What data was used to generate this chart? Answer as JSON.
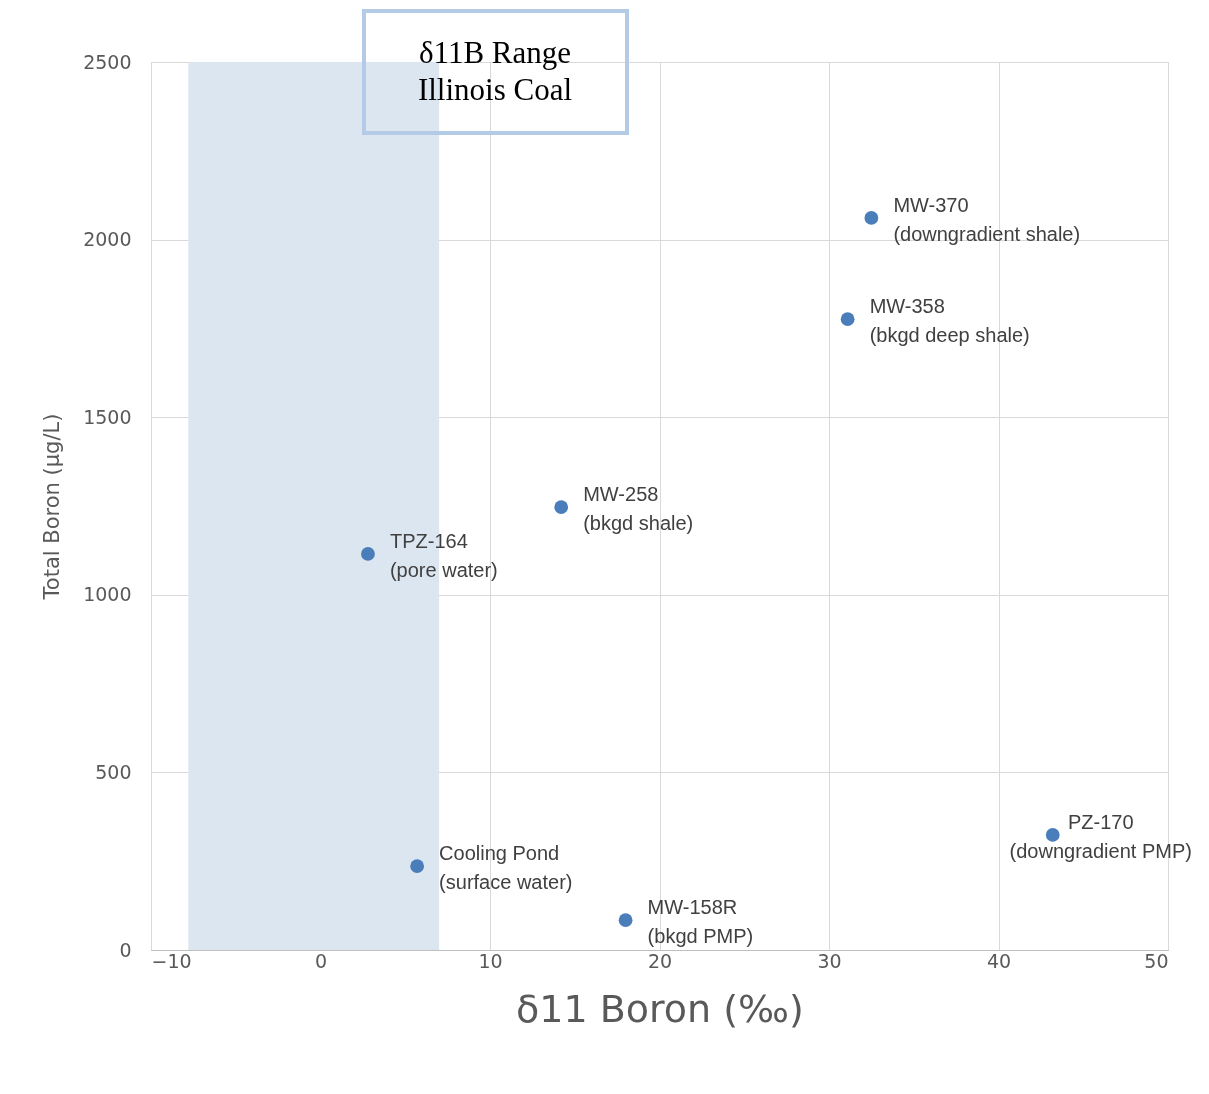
{
  "chart_data": {
    "type": "scatter",
    "xlabel": "δ11 Boron (‰)",
    "ylabel": "Total Boron (µg/L)",
    "series": [
      {
        "color": "#4a7ebb",
        "x": [
          2.8,
          5.7,
          14.2,
          18.0,
          31.1,
          32.5,
          43.2
        ],
        "values": [
          1115,
          236,
          1247,
          84,
          1776,
          2061,
          324
        ]
      }
    ],
    "annotations": [
      {
        "text": "TPZ-164\n(pore water)",
        "x": 2.8,
        "y": 1115
      },
      {
        "text": "Cooling Pond\n(surface water)",
        "x": 5.7,
        "y": 236
      },
      {
        "text": "MW-258\n(bkgd shale)",
        "x": 14.2,
        "y": 1247
      },
      {
        "text": "MW-158R\n(bkgd PMP)",
        "x": 18.0,
        "y": 84
      },
      {
        "text": "MW-358\n(bkgd deep shale)",
        "x": 31.1,
        "y": 1776
      },
      {
        "text": "MW-370\n(downgradient shale)",
        "x": 32.5,
        "y": 2061
      },
      {
        "text": "PZ-170\n(downgradient PMP)",
        "x": 43.2,
        "y": 324
      }
    ],
    "bands": [
      {
        "axis": "x",
        "from": -7.8,
        "to": 7.0,
        "label": "δ11B Range\nIllinois Coal",
        "color": "#dce6f1"
      }
    ],
    "xlim": [
      -10,
      50
    ],
    "xticks": [
      -10,
      0,
      10,
      20,
      30,
      40,
      50
    ],
    "ylim": [
      0,
      2500
    ],
    "yticks": [
      0,
      500,
      1000,
      1500,
      2000,
      2500
    ],
    "grid": true,
    "marker": "circle"
  }
}
